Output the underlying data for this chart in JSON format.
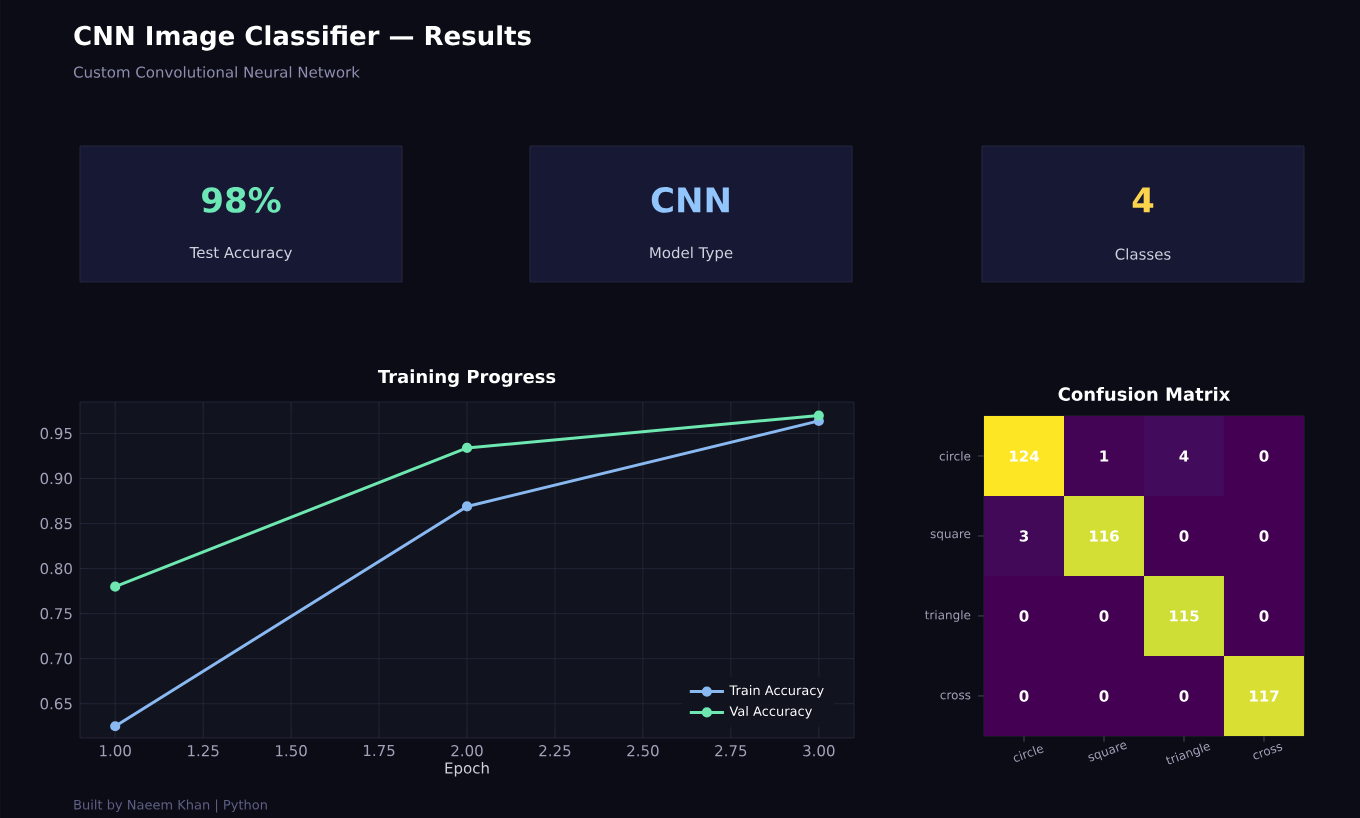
{
  "chart_data": [
    {
      "type": "other",
      "title": "CNN Image Classifier — Results",
      "subtitle": "Custom Convolutional Neural Network",
      "annotations": [
        "98%",
        "Test Accuracy",
        "CNN",
        "Model Type",
        "4",
        "Classes",
        "Built by Naeem Khan  |  Python"
      ]
    },
    {
      "type": "line",
      "title": "Training Progress",
      "xlabel": "Epoch",
      "x": [
        1,
        2,
        3
      ],
      "series": [
        {
          "name": "Train Accuracy",
          "color": "#89b9f0",
          "values": [
            0.625,
            0.869,
            0.964
          ]
        },
        {
          "name": "Val Accuracy",
          "color": "#6ee7b0",
          "values": [
            0.78,
            0.934,
            0.97
          ]
        }
      ],
      "xlim": [
        0.9,
        3.1
      ],
      "ylim": [
        0.612,
        0.985
      ],
      "xticks": [
        {
          "value": 1,
          "label": "1.00"
        },
        {
          "value": 1.25,
          "label": "1.25"
        },
        {
          "value": 1.5,
          "label": "1.50"
        },
        {
          "value": 1.75,
          "label": "1.75"
        },
        {
          "value": 2,
          "label": "2.00"
        },
        {
          "value": 2.25,
          "label": "2.25"
        },
        {
          "value": 2.5,
          "label": "2.50"
        },
        {
          "value": 2.75,
          "label": "2.75"
        },
        {
          "value": 3,
          "label": "3.00"
        }
      ],
      "yticks": [
        {
          "value": 0.65,
          "label": "0.65"
        },
        {
          "value": 0.7,
          "label": "0.70"
        },
        {
          "value": 0.75,
          "label": "0.75"
        },
        {
          "value": 0.8,
          "label": "0.80"
        },
        {
          "value": 0.85,
          "label": "0.85"
        },
        {
          "value": 0.9,
          "label": "0.90"
        },
        {
          "value": 0.95,
          "label": "0.95"
        }
      ],
      "grid": true,
      "legend": "bottom right",
      "marker": "circle",
      "line_style": "solid"
    },
    {
      "type": "heatmap",
      "title": "Confusion Matrix",
      "categories": [
        "circle",
        "square",
        "triangle",
        "cross"
      ],
      "y_categories": [
        "circle",
        "square",
        "triangle",
        "cross"
      ],
      "cells": [
        [
          124,
          1,
          4,
          0
        ],
        [
          3,
          116,
          0,
          0
        ],
        [
          0,
          0,
          115,
          0
        ],
        [
          0,
          0,
          0,
          117
        ]
      ],
      "data_labels": true
    }
  ]
}
